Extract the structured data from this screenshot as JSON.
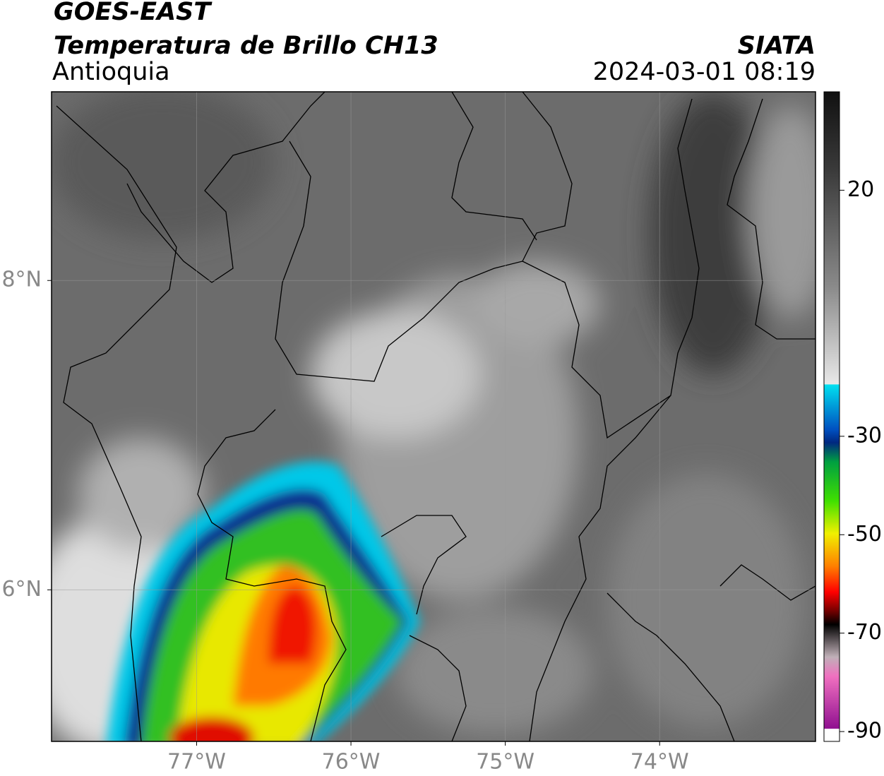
{
  "header": {
    "title": "GOES-EAST",
    "subtitle": "Temperatura de Brillo CH13",
    "region": "Antioquia",
    "source": "SIATA",
    "datetime": "2024-03-01 08:19"
  },
  "map": {
    "xlim": [
      -77.94,
      -72.99
    ],
    "ylim": [
      5.02,
      9.22
    ],
    "xticks": [
      {
        "value": -77,
        "label": "77°W"
      },
      {
        "value": -76,
        "label": "76°W"
      },
      {
        "value": -75,
        "label": "75°W"
      },
      {
        "value": -74,
        "label": "74°W"
      }
    ],
    "yticks": [
      {
        "value": 8,
        "label": "8°N"
      },
      {
        "value": 6,
        "label": "6°N"
      }
    ],
    "grid": true
  },
  "colorbar": {
    "clim": [
      -92,
      40
    ],
    "ticks": [
      20,
      -30,
      -50,
      -70,
      -90
    ]
  }
}
